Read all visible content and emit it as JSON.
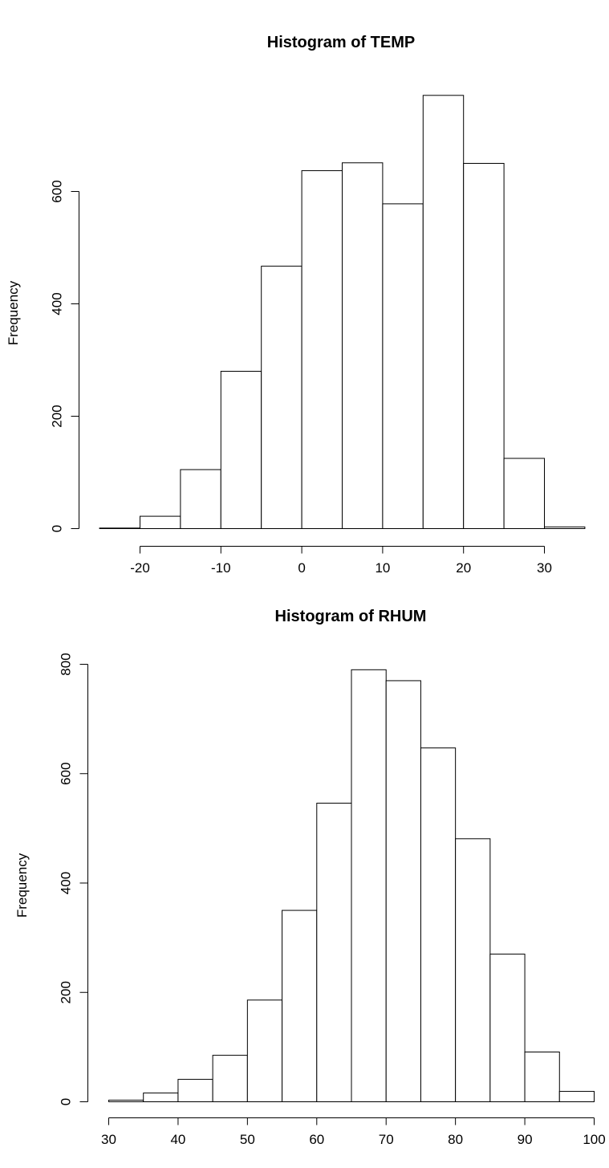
{
  "chart_data": [
    {
      "type": "bar",
      "title": "Histogram of TEMP",
      "xlabel": "",
      "ylabel": "Frequency",
      "bin_edges": [
        -25,
        -20,
        -15,
        -10,
        -5,
        0,
        5,
        10,
        15,
        20,
        25,
        30,
        35
      ],
      "values": [
        1,
        22,
        105,
        280,
        467,
        637,
        651,
        578,
        771,
        650,
        125,
        3
      ],
      "xticks": [
        -20,
        -10,
        0,
        10,
        20,
        30
      ],
      "xtick_labels": [
        "-20",
        "-10",
        "0",
        "10",
        "20",
        "30"
      ],
      "yticks": [
        0,
        200,
        400,
        600
      ],
      "ytick_labels": [
        "0",
        "200",
        "400",
        "600"
      ],
      "xlim": [
        -25,
        35
      ],
      "ylim": [
        0,
        771
      ],
      "grid": false
    },
    {
      "type": "bar",
      "title": "Histogram of RHUM",
      "xlabel": "",
      "ylabel": "Frequency",
      "bin_edges": [
        30,
        35,
        40,
        45,
        50,
        55,
        60,
        65,
        70,
        75,
        80,
        85,
        90,
        95,
        100
      ],
      "values": [
        3,
        16,
        41,
        85,
        186,
        350,
        546,
        790,
        770,
        647,
        481,
        270,
        91,
        19
      ],
      "xticks": [
        30,
        40,
        50,
        60,
        70,
        80,
        90,
        100
      ],
      "xtick_labels": [
        "30",
        "40",
        "50",
        "60",
        "70",
        "80",
        "90",
        "100"
      ],
      "yticks": [
        0,
        200,
        400,
        600,
        800
      ],
      "ytick_labels": [
        "0",
        "200",
        "400",
        "600",
        "800"
      ],
      "xlim": [
        30,
        100
      ],
      "ylim": [
        0,
        800
      ],
      "grid": false
    }
  ]
}
